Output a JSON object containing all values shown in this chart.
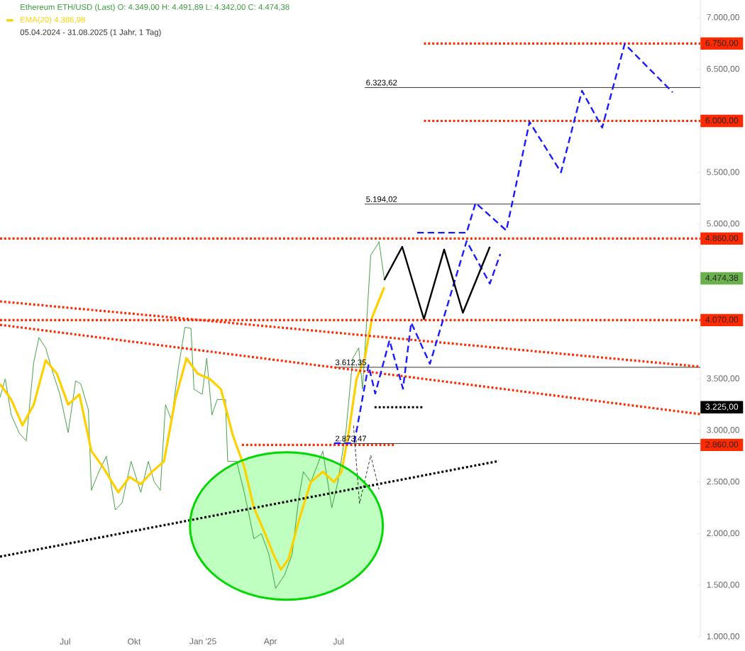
{
  "chart_data": {
    "type": "line",
    "title": "Ethereum ETH/USD (Last)  O: 4.349,00  H: 4.491,89  L: 4.342,00  C: 4.474,38",
    "subtitle": "05.04.2024 - 31.08.2025  (1 Jahr, 1 Tag)",
    "xlim": [
      "2024-04-05",
      "2026-10-27"
    ],
    "ylim": [
      1000,
      7172
    ],
    "xticks": [
      {
        "value": "2024-07-01",
        "label": "Jul"
      },
      {
        "value": "2024-10-01",
        "label": "Okt"
      },
      {
        "value": "2025-01-01",
        "label": "Jan '25"
      },
      {
        "value": "2025-04-01",
        "label": "Apr"
      },
      {
        "value": "2025-07-01",
        "label": "Jul"
      }
    ],
    "yticks": [
      {
        "value": 1000,
        "label": "1.000,00"
      },
      {
        "value": 1500,
        "label": "1.500,00"
      },
      {
        "value": 2000,
        "label": "2.000,00"
      },
      {
        "value": 2500,
        "label": "2.500,00"
      },
      {
        "value": 3000,
        "label": "3.000,00"
      },
      {
        "value": 3500,
        "label": "3.500,00"
      },
      {
        "value": 4000,
        "label": null
      },
      {
        "value": 4500,
        "label": null
      },
      {
        "value": 5000,
        "label": "5.000,00"
      },
      {
        "value": 5500,
        "label": "5.500,00"
      },
      {
        "value": 6000,
        "label": "6.000,00"
      },
      {
        "value": 6500,
        "label": "6.500,00"
      },
      {
        "value": 7000,
        "label": "7.000,00"
      }
    ],
    "grid": false,
    "legend": "top left",
    "marker": "none",
    "annotations": [
      "4.474,38"
    ],
    "series": [
      {
        "color": "#3a9a3a",
        "line_style": "solid",
        "x": [
          "2024-04-05",
          "2024-04-12",
          "2024-04-20",
          "2024-05-01",
          "2024-05-10",
          "2024-05-20",
          "2024-05-27",
          "2024-06-05",
          "2024-06-15",
          "2024-06-24",
          "2024-07-05",
          "2024-07-15",
          "2024-07-22",
          "2024-08-01",
          "2024-08-05",
          "2024-08-15",
          "2024-08-25",
          "2024-09-06",
          "2024-09-15",
          "2024-09-27",
          "2024-10-10",
          "2024-10-20",
          "2024-10-28",
          "2024-11-05",
          "2024-11-12",
          "2024-11-20",
          "2024-11-29",
          "2024-12-08",
          "2024-12-16",
          "2024-12-20",
          "2024-12-31",
          "2025-01-06",
          "2025-01-13",
          "2025-01-20",
          "2025-01-31",
          "2025-02-03",
          "2025-02-15",
          "2025-02-25",
          "2025-03-03",
          "2025-03-10",
          "2025-03-20",
          "2025-03-30",
          "2025-04-08",
          "2025-04-20",
          "2025-04-30",
          "2025-05-09",
          "2025-05-15",
          "2025-05-25",
          "2025-06-10",
          "2025-06-22",
          "2025-06-30",
          "2025-07-11",
          "2025-07-20",
          "2025-07-28",
          "2025-08-02",
          "2025-08-13",
          "2025-08-22",
          "2025-08-24",
          "2025-08-31"
        ],
        "values": [
          3320,
          3500,
          3150,
          2970,
          2900,
          3660,
          3900,
          3800,
          3550,
          3350,
          2980,
          3480,
          3450,
          3200,
          2420,
          2600,
          2750,
          2230,
          2300,
          2700,
          2400,
          2700,
          2500,
          2420,
          3250,
          3100,
          3600,
          4000,
          3990,
          3400,
          3350,
          3700,
          3150,
          3300,
          3300,
          2700,
          2700,
          2400,
          2200,
          1950,
          2000,
          1800,
          1470,
          1600,
          1800,
          2350,
          2600,
          2500,
          2800,
          2250,
          2500,
          3000,
          3700,
          3800,
          3400,
          4700,
          4800,
          4830,
          4474.38
        ]
      },
      {
        "name": "EMA(20)  4.386,98",
        "color": "#ffd000",
        "line_style": "solid",
        "x": [
          "2024-04-05",
          "2024-04-20",
          "2024-05-05",
          "2024-05-20",
          "2024-06-05",
          "2024-06-20",
          "2024-07-05",
          "2024-07-20",
          "2024-08-05",
          "2024-08-20",
          "2024-09-10",
          "2024-09-25",
          "2024-10-10",
          "2024-10-25",
          "2024-11-10",
          "2024-11-25",
          "2024-12-10",
          "2024-12-25",
          "2025-01-10",
          "2025-01-25",
          "2025-02-10",
          "2025-02-25",
          "2025-03-10",
          "2025-03-25",
          "2025-04-05",
          "2025-04-15",
          "2025-04-25",
          "2025-05-10",
          "2025-05-25",
          "2025-06-10",
          "2025-06-25",
          "2025-07-05",
          "2025-07-15",
          "2025-07-25",
          "2025-08-05",
          "2025-08-15",
          "2025-08-31"
        ],
        "values": [
          3450,
          3300,
          3050,
          3250,
          3680,
          3550,
          3250,
          3350,
          2800,
          2650,
          2400,
          2550,
          2480,
          2600,
          2700,
          3300,
          3700,
          3550,
          3500,
          3400,
          2950,
          2650,
          2250,
          2000,
          1800,
          1650,
          1750,
          2150,
          2500,
          2600,
          2500,
          2600,
          3000,
          3500,
          3700,
          4100,
          4386.98
        ]
      },
      {
        "name": "6.750,00",
        "color": "#ff2a00",
        "line_style": "dotted",
        "x": [
          "2025-10-23",
          "2026-10-27"
        ],
        "values": [
          6750,
          6750
        ]
      },
      {
        "name": "6.000,00",
        "color": "#ff2a00",
        "line_style": "dotted",
        "x": [
          "2025-10-23",
          "2026-10-27"
        ],
        "values": [
          6000,
          6000
        ]
      },
      {
        "name": "4.860,00",
        "color": "#ff2a00",
        "line_style": "dotted",
        "x": [
          "2024-04-05",
          "2026-10-27"
        ],
        "values": [
          4860,
          4860
        ]
      },
      {
        "name": "4.070,00",
        "color": "#ff2a00",
        "line_style": "dotted",
        "x": [
          "2024-04-05",
          "2026-10-27"
        ],
        "values": [
          4070,
          4070
        ]
      },
      {
        "name": "3.225,00",
        "color": "#000000",
        "line_style": "dotted",
        "x": [
          "2025-08-18",
          "2025-10-21"
        ],
        "values": [
          3225,
          3225
        ]
      },
      {
        "name": "2.860,00",
        "color": "#ff2a00",
        "line_style": "dotted",
        "x": [
          "2025-02-22",
          "2025-09-15"
        ],
        "values": [
          2860,
          2860
        ]
      },
      {
        "name": "6.323,62",
        "color": "#000000",
        "line_style": "solid",
        "x": [
          "2025-08-05",
          "2026-10-27"
        ],
        "values": [
          6323.62,
          6323.62
        ]
      },
      {
        "name": "5.194,02",
        "color": "#000000",
        "line_style": "solid",
        "x": [
          "2025-08-05",
          "2026-10-27"
        ],
        "values": [
          5194.02,
          5194.02
        ]
      },
      {
        "name": "3.612,35",
        "color": "#000000",
        "line_style": "solid",
        "x": [
          "2025-06-25",
          "2026-10-27"
        ],
        "values": [
          3612.35,
          3612.35
        ]
      },
      {
        "name": "2.873,47",
        "color": "#000000",
        "line_style": "solid",
        "x": [
          "2025-06-25",
          "2026-10-27"
        ],
        "values": [
          2873.47,
          2873.47
        ]
      },
      {
        "color": "#ff2a00",
        "line_style": "dotted",
        "x": [
          "2024-04-05",
          "2026-10-27"
        ],
        "values": [
          4251,
          3618
        ]
      },
      {
        "color": "#ff2a00",
        "line_style": "dotted",
        "x": [
          "2024-04-05",
          "2026-10-27"
        ],
        "values": [
          4024,
          3158
        ]
      },
      {
        "color": "#000000",
        "line_style": "dotted",
        "x": [
          "2024-04-05",
          "2026-01-31"
        ],
        "values": [
          1777,
          2704
        ]
      },
      {
        "color": "#1a1aff",
        "line_style": "dashed",
        "x": [
          "2025-06-25",
          "2025-07-22",
          "2025-08-10",
          "2025-08-19",
          "2025-09-07",
          "2025-09-25",
          "2025-10-06",
          "2025-10-31",
          "2025-12-19",
          "2026-01-19",
          "2026-02-02"
        ],
        "values": [
          2876,
          2876,
          3632,
          3357,
          3873,
          3405,
          4045,
          3646,
          4835,
          4423,
          4711
        ]
      },
      {
        "color": "#1a1aff",
        "line_style": "dashed",
        "x": [
          "2025-10-14",
          "2025-12-19",
          "2025-12-31",
          "2026-02-10",
          "2026-03-13",
          "2026-04-24",
          "2026-05-22",
          "2026-06-18",
          "2026-07-18",
          "2026-09-20"
        ],
        "values": [
          4917,
          4917,
          5206,
          4938,
          5990,
          5502,
          6292,
          5935,
          6746,
          6278
        ]
      },
      {
        "color": "#000000",
        "line_style": "solid",
        "x": [
          "2025-08-31",
          "2025-09-24",
          "2025-10-23",
          "2025-11-19",
          "2025-12-14",
          "2026-01-19"
        ],
        "values": [
          4457,
          4780,
          4079,
          4753,
          4141,
          4780
        ]
      },
      {
        "color": "#000000",
        "line_style": "dashed",
        "x": [
          "2025-07-21",
          "2025-07-29",
          "2025-08-13",
          "2025-08-24"
        ],
        "values": [
          3048,
          2292,
          2759,
          2429
        ]
      }
    ]
  }
}
